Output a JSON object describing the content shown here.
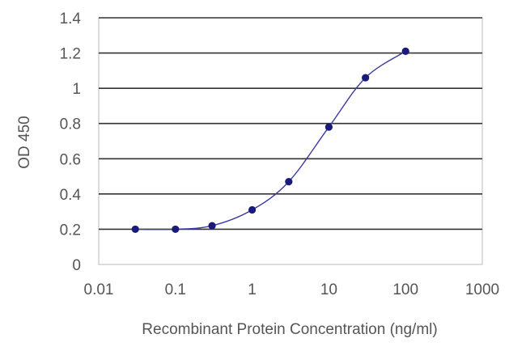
{
  "chart_data": {
    "type": "line",
    "title": "",
    "xlabel": "Recombinant Protein Concentration (ng/ml)",
    "ylabel": "OD 450",
    "x_scale": "log",
    "xlim": [
      0.01,
      1000
    ],
    "ylim": [
      0,
      1.4
    ],
    "x_ticks": [
      "0.01",
      "0.1",
      "1",
      "10",
      "100",
      "1000"
    ],
    "y_ticks": [
      "0",
      "0.2",
      "0.4",
      "0.6",
      "0.8",
      "1",
      "1.2",
      "1.4"
    ],
    "grid": "horizontal",
    "legend": "none",
    "series": [
      {
        "x": [
          0.03,
          0.1,
          0.3,
          1,
          3,
          10,
          30,
          100
        ],
        "y": [
          0.2,
          0.2,
          0.22,
          0.31,
          0.47,
          0.78,
          1.06,
          1.21
        ]
      }
    ],
    "colors": {
      "line": "#3a3aa0",
      "marker": "#1a1a7a",
      "grid": "#333333",
      "text": "#555555"
    }
  }
}
